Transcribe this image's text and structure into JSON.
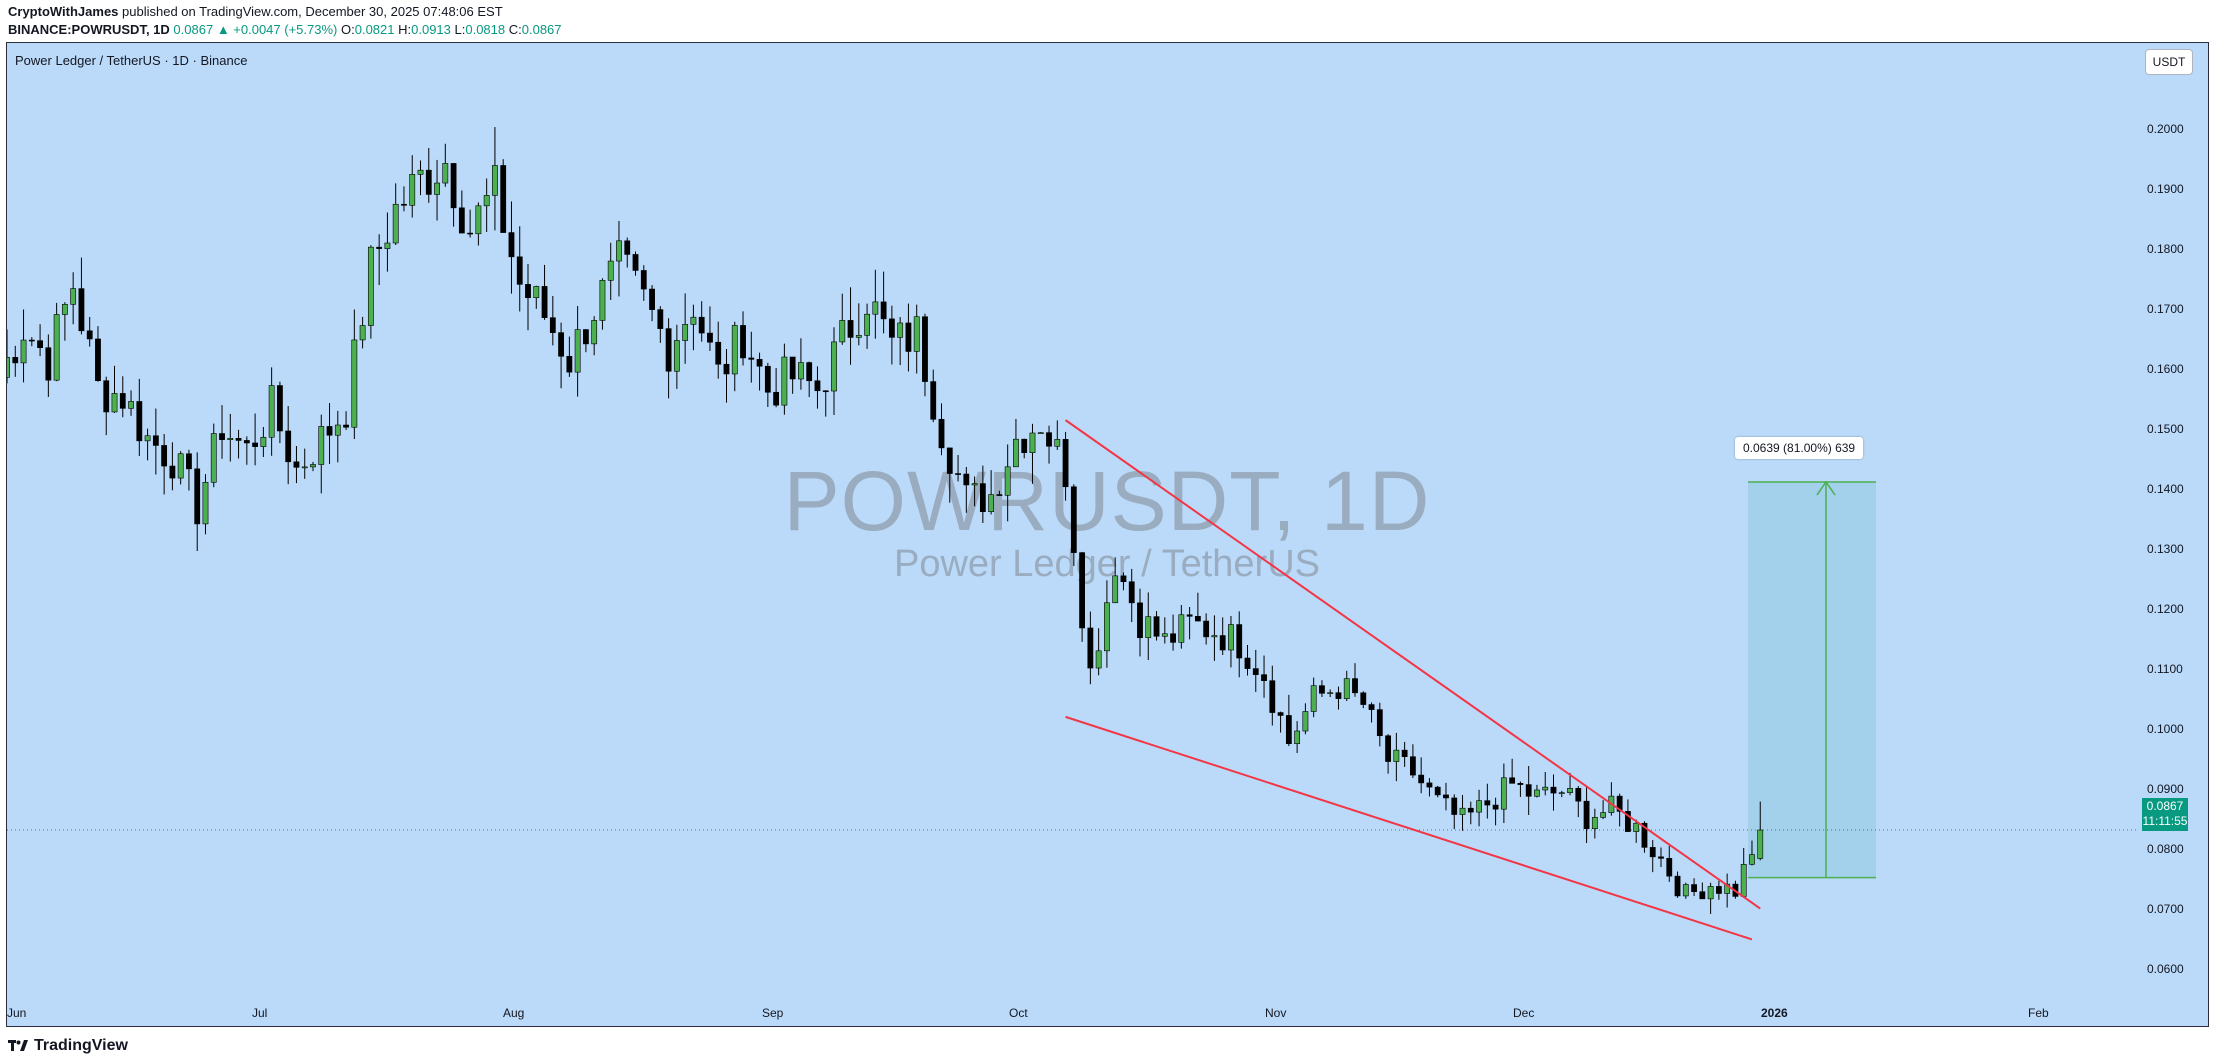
{
  "header": {
    "publisher": "CryptoWithJames",
    "published_text": "published on TradingView.com, December 30, 2025 07:48:06 EST",
    "symbol": "BINANCE:POWRUSDT, 1D",
    "last": "0.0867",
    "change": "▲ +0.0047 (+5.73%)",
    "o_label": "O:",
    "o_value": "0.0821",
    "h_label": "H:",
    "h_value": "0.0913",
    "l_label": "L:",
    "l_value": "0.0818",
    "c_label": "C:",
    "c_value": "0.0867"
  },
  "chart": {
    "series_title": "Power Ledger / TetherUS · 1D · Binance",
    "currency": "USDT",
    "watermark_symbol": "POWRUSDT, 1D",
    "watermark_name": "Power Ledger / TetherUS",
    "price_axis": [
      "0.2000",
      "0.1900",
      "0.1800",
      "0.1700",
      "0.1600",
      "0.1500",
      "0.1400",
      "0.1300",
      "0.1200",
      "0.1100",
      "0.1000",
      "0.0900",
      "0.0800",
      "0.0700",
      "0.0600"
    ],
    "time_axis": [
      "Jun",
      "Jul",
      "Aug",
      "Sep",
      "Oct",
      "Nov",
      "Dec",
      "2026",
      "Feb"
    ],
    "last_price": "0.0867",
    "countdown": "11:11:55",
    "measure_label": "0.0639 (81.00%) 639",
    "colors": {
      "background": "#bbdaf9",
      "up": "#4caf50",
      "down": "#000000",
      "trendline": "#f23645",
      "measure_fill": "#9fcfea",
      "measure_line": "#4caf50"
    }
  },
  "chart_data": {
    "type": "candlestick",
    "title": "Power Ledger / TetherUS · 1D · Binance",
    "ylim": [
      0.055,
      0.214
    ],
    "y_ticks": [
      0.06,
      0.07,
      0.08,
      0.09,
      0.1,
      0.11,
      0.12,
      0.13,
      0.14,
      0.15,
      0.16,
      0.17,
      0.18,
      0.19,
      0.2
    ],
    "x_ticks": [
      "Jun",
      "Jul",
      "Aug",
      "Sep",
      "Oct",
      "Nov",
      "Dec",
      "2026",
      "Feb"
    ],
    "close_path": [
      {
        "x": "2025-05-31",
        "close": 0.16
      },
      {
        "x": "2025-06-03",
        "close": 0.168
      },
      {
        "x": "2025-06-06",
        "close": 0.163
      },
      {
        "x": "2025-06-09",
        "close": 0.175
      },
      {
        "x": "2025-06-12",
        "close": 0.158
      },
      {
        "x": "2025-06-15",
        "close": 0.157
      },
      {
        "x": "2025-06-18",
        "close": 0.15
      },
      {
        "x": "2025-06-21",
        "close": 0.147
      },
      {
        "x": "2025-06-24",
        "close": 0.139
      },
      {
        "x": "2025-06-27",
        "close": 0.152
      },
      {
        "x": "2025-06-30",
        "close": 0.148
      },
      {
        "x": "2025-07-03",
        "close": 0.155
      },
      {
        "x": "2025-07-06",
        "close": 0.145
      },
      {
        "x": "2025-07-09",
        "close": 0.15
      },
      {
        "x": "2025-07-12",
        "close": 0.155
      },
      {
        "x": "2025-07-15",
        "close": 0.178
      },
      {
        "x": "2025-07-18",
        "close": 0.187
      },
      {
        "x": "2025-07-21",
        "close": 0.192
      },
      {
        "x": "2025-07-24",
        "close": 0.195
      },
      {
        "x": "2025-07-27",
        "close": 0.184
      },
      {
        "x": "2025-07-30",
        "close": 0.19
      },
      {
        "x": "2025-08-02",
        "close": 0.175
      },
      {
        "x": "2025-08-05",
        "close": 0.17
      },
      {
        "x": "2025-08-08",
        "close": 0.163
      },
      {
        "x": "2025-08-11",
        "close": 0.171
      },
      {
        "x": "2025-08-14",
        "close": 0.178
      },
      {
        "x": "2025-08-17",
        "close": 0.172
      },
      {
        "x": "2025-08-20",
        "close": 0.165
      },
      {
        "x": "2025-08-23",
        "close": 0.172
      },
      {
        "x": "2025-08-26",
        "close": 0.16
      },
      {
        "x": "2025-08-29",
        "close": 0.167
      },
      {
        "x": "2025-09-01",
        "close": 0.158
      },
      {
        "x": "2025-09-04",
        "close": 0.16
      },
      {
        "x": "2025-09-07",
        "close": 0.158
      },
      {
        "x": "2025-09-10",
        "close": 0.166
      },
      {
        "x": "2025-09-13",
        "close": 0.173
      },
      {
        "x": "2025-09-16",
        "close": 0.165
      },
      {
        "x": "2025-09-19",
        "close": 0.167
      },
      {
        "x": "2025-09-22",
        "close": 0.152
      },
      {
        "x": "2025-09-25",
        "close": 0.14
      },
      {
        "x": "2025-09-28",
        "close": 0.141
      },
      {
        "x": "2025-10-01",
        "close": 0.15
      },
      {
        "x": "2025-10-04",
        "close": 0.153
      },
      {
        "x": "2025-10-07",
        "close": 0.145
      },
      {
        "x": "2025-10-10",
        "close": 0.112
      },
      {
        "x": "2025-10-13",
        "close": 0.13
      },
      {
        "x": "2025-10-16",
        "close": 0.121
      },
      {
        "x": "2025-10-19",
        "close": 0.117
      },
      {
        "x": "2025-10-22",
        "close": 0.12
      },
      {
        "x": "2025-10-25",
        "close": 0.119
      },
      {
        "x": "2025-10-28",
        "close": 0.117
      },
      {
        "x": "2025-10-31",
        "close": 0.112
      },
      {
        "x": "2025-11-03",
        "close": 0.101
      },
      {
        "x": "2025-11-06",
        "close": 0.108
      },
      {
        "x": "2025-11-09",
        "close": 0.11
      },
      {
        "x": "2025-11-12",
        "close": 0.107
      },
      {
        "x": "2025-11-15",
        "close": 0.098
      },
      {
        "x": "2025-11-18",
        "close": 0.096
      },
      {
        "x": "2025-11-21",
        "close": 0.091
      },
      {
        "x": "2025-11-24",
        "close": 0.088
      },
      {
        "x": "2025-11-27",
        "close": 0.091
      },
      {
        "x": "2025-11-30",
        "close": 0.094
      },
      {
        "x": "2025-12-03",
        "close": 0.092
      },
      {
        "x": "2025-12-06",
        "close": 0.093
      },
      {
        "x": "2025-12-09",
        "close": 0.089
      },
      {
        "x": "2025-12-12",
        "close": 0.09
      },
      {
        "x": "2025-12-15",
        "close": 0.087
      },
      {
        "x": "2025-12-18",
        "close": 0.082
      },
      {
        "x": "2025-12-21",
        "close": 0.076
      },
      {
        "x": "2025-12-24",
        "close": 0.078
      },
      {
        "x": "2025-12-27",
        "close": 0.077
      },
      {
        "x": "2025-12-30",
        "close": 0.0867
      }
    ],
    "last_candle": {
      "x": "2025-12-30",
      "open": 0.0821,
      "high": 0.0913,
      "low": 0.0818,
      "close": 0.0867
    },
    "falling_wedge": {
      "upper_line": [
        {
          "x": "2025-10-07",
          "y": 0.153
        },
        {
          "x": "2025-12-30",
          "y": 0.074
        }
      ],
      "lower_line": [
        {
          "x": "2025-10-07",
          "y": 0.105
        },
        {
          "x": "2025-12-29",
          "y": 0.069
        }
      ]
    },
    "measure": {
      "from": 0.079,
      "to": 0.143,
      "change": "0.0639 (81.00%) 639"
    }
  }
}
